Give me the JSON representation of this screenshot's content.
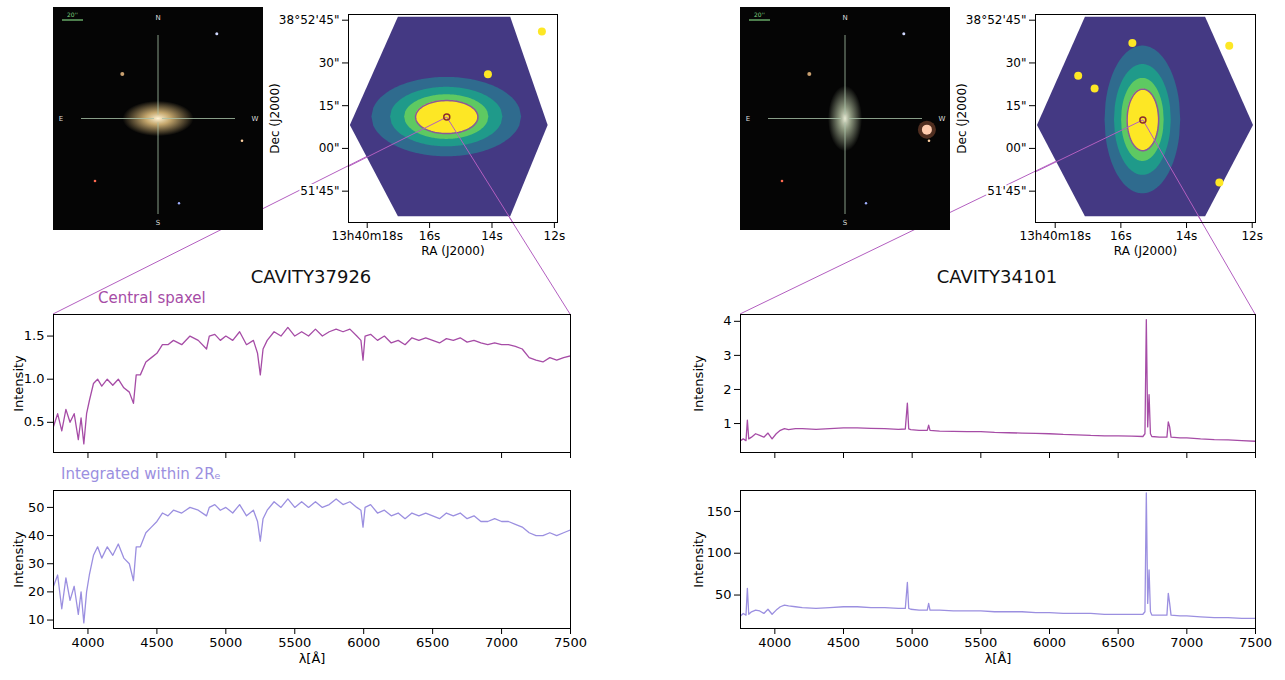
{
  "chart_data": [
    {
      "type": "figure",
      "title": "CAVITY37926",
      "image": {
        "type": "image",
        "compass": {
          "top": "N",
          "bottom": "S",
          "left": "E",
          "right": "W"
        },
        "scale_bar": "20''"
      },
      "map": {
        "type": "map",
        "xlabel": "RA (J2000)",
        "ylabel": "Dec (J2000)",
        "xlim": [
          49218.6,
          49211.9
        ],
        "ylim": [
          139894,
          139967
        ],
        "xticks": [
          {
            "value": 49218,
            "label": "13h40m18s"
          },
          {
            "value": 49216,
            "label": "16s"
          },
          {
            "value": 49214,
            "label": "14s"
          },
          {
            "value": 49212,
            "label": "12s"
          }
        ],
        "yticks": [
          {
            "value": 139965,
            "label": "38°52'45\""
          },
          {
            "value": 139950,
            "label": "30\""
          },
          {
            "value": 139935,
            "label": "15\""
          },
          {
            "value": 139920,
            "label": "00\""
          },
          {
            "value": 139905,
            "label": "51'45\""
          }
        ],
        "footprint": [
          {
            "ra": 49218.54,
            "dec_low": 139928,
            "dec_high": 139928
          },
          {
            "ra": 49217.0,
            "dec_low": 139896,
            "dec_high": 139966
          },
          {
            "ra": 49213.4,
            "dec_low": 139896,
            "dec_high": 139966
          },
          {
            "ra": 49212.2,
            "dec_low": 139928,
            "dec_high": 139928
          }
        ],
        "ellipse": {
          "ra": 49215.45,
          "dec": 139931,
          "half_width": 1.0,
          "half_height": 5.8
        },
        "sources": [
          {
            "ra": 49214.13,
            "dec": 139946
          },
          {
            "ra": 49212.4,
            "dec": 139961
          }
        ]
      },
      "spectra": [
        {
          "type": "line",
          "title": "Central spaxel",
          "color": "#a64ca6",
          "ylabel": "Intensity",
          "tick_labels": "y",
          "xlim": [
            3750,
            7500
          ],
          "xticks": [
            4000,
            4500,
            5000,
            5500,
            6000,
            6500,
            7000,
            7500
          ],
          "ylim": [
            0.15,
            1.75
          ],
          "yticks": [
            0.5,
            {
              "value": 1,
              "label": "1.0"
            },
            1.5
          ],
          "x": [
            3750,
            3780,
            3810,
            3840,
            3870,
            3900,
            3930,
            3950,
            3970,
            3990,
            4010,
            4040,
            4070,
            4100,
            4140,
            4180,
            4220,
            4260,
            4300,
            4330,
            4350,
            4380,
            4420,
            4460,
            4500,
            4540,
            4580,
            4620,
            4680,
            4740,
            4800,
            4860,
            4880,
            4920,
            4960,
            5000,
            5050,
            5100,
            5150,
            5200,
            5230,
            5250,
            5270,
            5300,
            5350,
            5400,
            5450,
            5500,
            5550,
            5600,
            5650,
            5700,
            5750,
            5800,
            5850,
            5900,
            5950,
            5980,
            5995,
            6010,
            6050,
            6100,
            6150,
            6200,
            6250,
            6300,
            6350,
            6400,
            6450,
            6500,
            6550,
            6600,
            6650,
            6700,
            6750,
            6800,
            6850,
            6900,
            6950,
            7000,
            7050,
            7100,
            7150,
            7200,
            7250,
            7300,
            7350,
            7400,
            7450,
            7500
          ],
          "values": [
            0.45,
            0.6,
            0.4,
            0.65,
            0.5,
            0.6,
            0.3,
            0.55,
            0.25,
            0.6,
            0.75,
            0.95,
            1.0,
            0.92,
            1.0,
            0.93,
            1.0,
            0.9,
            0.85,
            0.72,
            1.05,
            1.05,
            1.2,
            1.25,
            1.3,
            1.4,
            1.4,
            1.45,
            1.4,
            1.5,
            1.45,
            1.35,
            1.5,
            1.52,
            1.45,
            1.5,
            1.45,
            1.55,
            1.4,
            1.45,
            1.3,
            1.05,
            1.35,
            1.45,
            1.55,
            1.5,
            1.6,
            1.5,
            1.55,
            1.5,
            1.58,
            1.5,
            1.55,
            1.58,
            1.55,
            1.58,
            1.5,
            1.45,
            1.22,
            1.5,
            1.52,
            1.45,
            1.5,
            1.42,
            1.45,
            1.4,
            1.48,
            1.45,
            1.48,
            1.45,
            1.42,
            1.47,
            1.45,
            1.48,
            1.43,
            1.45,
            1.42,
            1.4,
            1.42,
            1.4,
            1.4,
            1.38,
            1.35,
            1.25,
            1.22,
            1.2,
            1.25,
            1.22,
            1.25,
            1.27
          ]
        },
        {
          "type": "line",
          "title": "Integrated within 2Rₑ",
          "color": "#9b8fe0",
          "ylabel": "Intensity",
          "xlabel": "λ[Å]",
          "xlim": [
            3750,
            7500
          ],
          "xticks": [
            4000,
            4500,
            5000,
            5500,
            6000,
            6500,
            7000,
            7500
          ],
          "ylim": [
            7,
            56
          ],
          "yticks": [
            10,
            20,
            30,
            40,
            50
          ],
          "x": [
            3750,
            3780,
            3810,
            3840,
            3870,
            3900,
            3930,
            3950,
            3970,
            3990,
            4010,
            4040,
            4070,
            4100,
            4140,
            4180,
            4220,
            4260,
            4300,
            4330,
            4350,
            4380,
            4420,
            4460,
            4500,
            4540,
            4580,
            4620,
            4680,
            4740,
            4800,
            4860,
            4880,
            4920,
            4960,
            5000,
            5050,
            5100,
            5150,
            5200,
            5230,
            5250,
            5270,
            5300,
            5350,
            5400,
            5450,
            5500,
            5550,
            5600,
            5650,
            5700,
            5750,
            5800,
            5850,
            5900,
            5950,
            5980,
            5995,
            6010,
            6050,
            6100,
            6150,
            6200,
            6250,
            6300,
            6350,
            6400,
            6450,
            6500,
            6550,
            6600,
            6650,
            6700,
            6750,
            6800,
            6850,
            6900,
            6950,
            7000,
            7050,
            7100,
            7150,
            7200,
            7250,
            7300,
            7350,
            7400,
            7450,
            7500
          ],
          "values": [
            22,
            26,
            14,
            25,
            17,
            22,
            12,
            20,
            9,
            20,
            26,
            33,
            36,
            32,
            36,
            33,
            37,
            32,
            30,
            24,
            36,
            36,
            41,
            43,
            45,
            48,
            47,
            49,
            48,
            50,
            49,
            47,
            50,
            51,
            49,
            50,
            48,
            51,
            47,
            49,
            45,
            38,
            46,
            49,
            52,
            50,
            53,
            50,
            52,
            50,
            52,
            50,
            51,
            53,
            51,
            52,
            50,
            49,
            43,
            50,
            51,
            48,
            49,
            47,
            48,
            46,
            48,
            47,
            48,
            47,
            46,
            48,
            47,
            48,
            46,
            47,
            45,
            45,
            46,
            45,
            45,
            44,
            43,
            41,
            40,
            40,
            41,
            40,
            41,
            42
          ]
        }
      ]
    },
    {
      "type": "figure",
      "title": "CAVITY34101",
      "image": {
        "type": "image",
        "compass": {
          "top": "N",
          "bottom": "S",
          "left": "E",
          "right": "W"
        },
        "scale_bar": "20''"
      },
      "map": {
        "type": "map",
        "xlabel": "RA (J2000)",
        "ylabel": "Dec (J2000)",
        "xlim": [
          49218.6,
          49211.9
        ],
        "ylim": [
          139894,
          139967
        ],
        "xticks": [
          {
            "value": 49218,
            "label": "13h40m18s"
          },
          {
            "value": 49216,
            "label": "16s"
          },
          {
            "value": 49214,
            "label": "14s"
          },
          {
            "value": 49212,
            "label": "12s"
          }
        ],
        "yticks": [
          {
            "value": 139965,
            "label": "38°52'45\""
          },
          {
            "value": 139950,
            "label": "30\""
          },
          {
            "value": 139935,
            "label": "15\""
          },
          {
            "value": 139920,
            "label": "00\""
          },
          {
            "value": 139905,
            "label": "51'45\""
          }
        ],
        "footprint": [
          {
            "ra": 49218.54,
            "dec_low": 139928,
            "dec_high": 139928
          },
          {
            "ra": 49217.08,
            "dec_low": 139896,
            "dec_high": 139966
          },
          {
            "ra": 49213.42,
            "dec_low": 139896,
            "dec_high": 139966
          },
          {
            "ra": 49211.96,
            "dec_low": 139928,
            "dec_high": 139928
          }
        ],
        "ellipse": {
          "ra": 49215.33,
          "dec": 139930,
          "half_width": 0.48,
          "half_height": 10.8
        },
        "sources": [
          {
            "ra": 49215.65,
            "dec": 139957
          },
          {
            "ra": 49213.0,
            "dec": 139908
          },
          {
            "ra": 49217.3,
            "dec": 139945.5
          },
          {
            "ra": 49216.8,
            "dec": 139941
          },
          {
            "ra": 49212.7,
            "dec": 139956
          }
        ]
      },
      "spectra": [
        {
          "type": "line",
          "color": "#a64ca6",
          "ylabel": "Intensity",
          "tick_labels": "y",
          "xlim": [
            3750,
            7500
          ],
          "xticks": [
            4000,
            4500,
            5000,
            5500,
            6000,
            6500,
            7000,
            7500
          ],
          "ylim": [
            0.15,
            4.2
          ],
          "yticks": [
            1,
            2,
            3,
            4
          ],
          "x": [
            3750,
            3770,
            3790,
            3800,
            3810,
            3830,
            3860,
            3890,
            3920,
            3950,
            3980,
            4010,
            4040,
            4070,
            4100,
            4150,
            4200,
            4300,
            4400,
            4500,
            4600,
            4700,
            4800,
            4900,
            4950,
            4965,
            4975,
            4990,
            5050,
            5110,
            5120,
            5130,
            5200,
            5300,
            5400,
            5500,
            5600,
            5700,
            5800,
            5900,
            6000,
            6100,
            6200,
            6300,
            6400,
            6500,
            6600,
            6680,
            6695,
            6705,
            6715,
            6725,
            6735,
            6745,
            6800,
            6855,
            6865,
            6875,
            6885,
            6950,
            7000,
            7100,
            7200,
            7300,
            7400,
            7500
          ],
          "values": [
            0.5,
            0.55,
            0.5,
            1.1,
            0.55,
            0.6,
            0.7,
            0.65,
            0.6,
            0.72,
            0.55,
            0.7,
            0.8,
            0.85,
            0.82,
            0.85,
            0.85,
            0.83,
            0.85,
            0.87,
            0.87,
            0.86,
            0.85,
            0.83,
            0.84,
            1.6,
            0.84,
            0.82,
            0.8,
            0.8,
            0.95,
            0.8,
            0.78,
            0.77,
            0.76,
            0.76,
            0.74,
            0.73,
            0.72,
            0.71,
            0.7,
            0.68,
            0.67,
            0.65,
            0.64,
            0.64,
            0.63,
            0.62,
            0.7,
            4.05,
            0.9,
            1.85,
            0.7,
            0.62,
            0.6,
            0.6,
            1.05,
            0.9,
            0.6,
            0.58,
            0.58,
            0.55,
            0.53,
            0.52,
            0.5,
            0.48
          ]
        },
        {
          "type": "line",
          "color": "#9b8fe0",
          "ylabel": "Intensity",
          "xlabel": "λ[Å]",
          "xlim": [
            3750,
            7500
          ],
          "xticks": [
            4000,
            4500,
            5000,
            5500,
            6000,
            6500,
            7000,
            7500
          ],
          "ylim": [
            10,
            175
          ],
          "yticks": [
            50,
            100,
            150
          ],
          "x": [
            3750,
            3770,
            3790,
            3800,
            3810,
            3830,
            3860,
            3890,
            3920,
            3950,
            3980,
            4010,
            4040,
            4070,
            4100,
            4150,
            4200,
            4300,
            4400,
            4500,
            4600,
            4700,
            4800,
            4900,
            4950,
            4965,
            4975,
            4990,
            5050,
            5110,
            5120,
            5130,
            5200,
            5300,
            5400,
            5500,
            5600,
            5700,
            5800,
            5900,
            6000,
            6100,
            6200,
            6300,
            6400,
            6500,
            6600,
            6680,
            6695,
            6705,
            6715,
            6725,
            6735,
            6745,
            6800,
            6855,
            6865,
            6875,
            6885,
            6950,
            7000,
            7100,
            7200,
            7300,
            7400,
            7500
          ],
          "values": [
            25,
            28,
            26,
            58,
            27,
            30,
            32,
            31,
            28,
            33,
            27,
            32,
            36,
            38,
            37,
            36,
            35,
            34,
            35,
            36,
            36,
            35,
            35,
            34,
            34,
            65,
            34,
            33,
            32,
            32,
            40,
            32,
            32,
            31,
            31,
            31,
            30,
            30,
            30,
            29,
            29,
            28,
            28,
            28,
            27,
            27,
            27,
            27,
            30,
            172,
            40,
            80,
            30,
            26,
            26,
            26,
            52,
            40,
            26,
            25,
            25,
            24,
            23,
            23,
            22,
            22
          ]
        }
      ]
    }
  ]
}
